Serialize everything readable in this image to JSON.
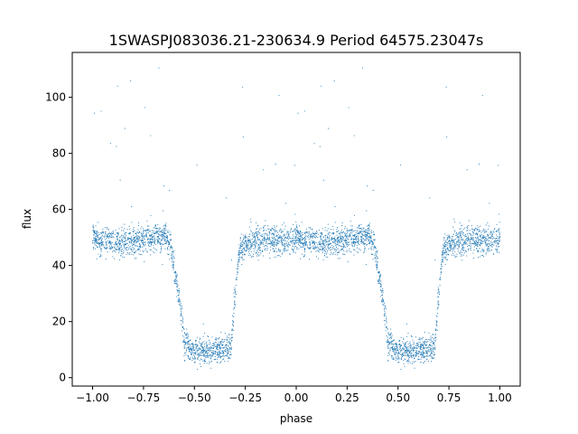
{
  "chart_data": {
    "type": "scatter",
    "title": "1SWASPJ083036.21-230634.9 Period 64575.23047s",
    "xlabel": "phase",
    "ylabel": "flux",
    "xlim": [
      -1.1,
      1.1
    ],
    "ylim": [
      -3,
      116
    ],
    "xticks": [
      -1.0,
      -0.75,
      -0.5,
      -0.25,
      0.0,
      0.25,
      0.5,
      0.75,
      1.0
    ],
    "xtick_labels": [
      "−1.00",
      "−0.75",
      "−0.50",
      "−0.25",
      "0.00",
      "0.25",
      "0.50",
      "0.75",
      "1.00"
    ],
    "yticks": [
      0,
      20,
      40,
      60,
      80,
      100
    ],
    "ytick_labels": [
      "0",
      "20",
      "40",
      "60",
      "80",
      "100"
    ],
    "grid": false,
    "legend": "none",
    "marker_color": "#1f77b4",
    "light_curve": {
      "x": [
        0.0,
        0.05,
        0.1,
        0.15,
        0.2,
        0.25,
        0.3,
        0.35,
        0.38,
        0.4,
        0.42,
        0.44,
        0.45,
        0.5,
        0.55,
        0.6,
        0.65,
        0.68,
        0.7,
        0.72,
        0.75,
        0.8,
        0.85,
        0.9,
        0.95,
        1.0
      ],
      "y": [
        50,
        49,
        48.5,
        48.5,
        48.5,
        49,
        50,
        50.5,
        48,
        40,
        30,
        20,
        13,
        9.5,
        9.5,
        10,
        10.5,
        10.5,
        30,
        45,
        48,
        49,
        49,
        49,
        49,
        50
      ]
    }
  }
}
